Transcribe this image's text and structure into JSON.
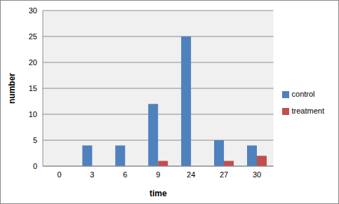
{
  "chart_data": {
    "type": "bar",
    "x_label": "time",
    "y_label": "number",
    "categories": [
      "0",
      "3",
      "6",
      "9",
      "24",
      "27",
      "30"
    ],
    "series": [
      {
        "name": "control",
        "color": "#4f81bd",
        "values": [
          0,
          4,
          4,
          12,
          25,
          5,
          4
        ]
      },
      {
        "name": "treatment",
        "color": "#c0504d",
        "values": [
          0,
          0,
          0,
          1,
          0,
          1,
          2
        ]
      }
    ],
    "ylim": [
      0,
      30
    ],
    "yticks": [
      0,
      5,
      10,
      15,
      20,
      25,
      30
    ],
    "grid": true,
    "legend": "right"
  }
}
